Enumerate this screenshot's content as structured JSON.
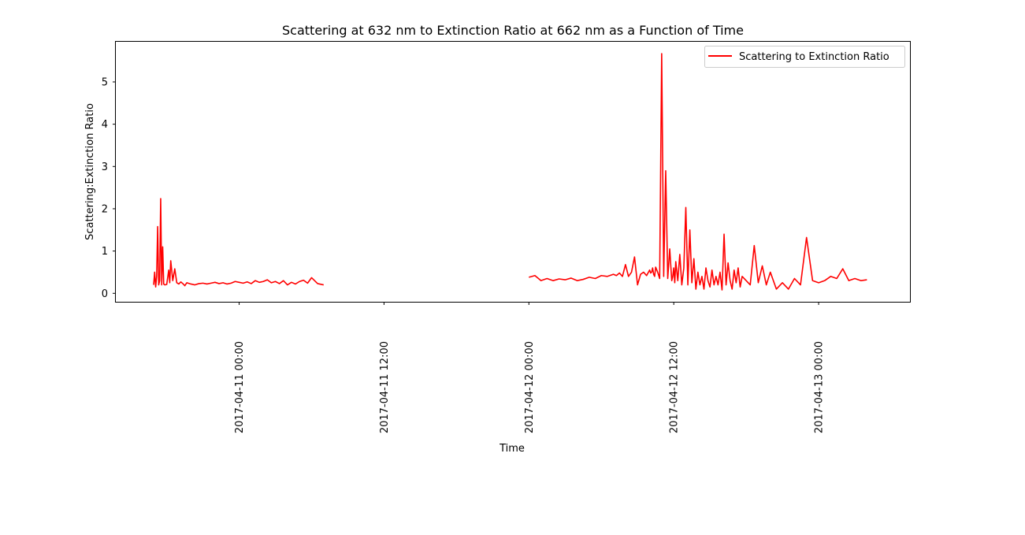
{
  "chart_data": {
    "type": "line",
    "title": "Scattering at 632 nm to Extinction Ratio at 662 nm as a Function of Time",
    "xlabel": "Time",
    "ylabel": "Scattering:Extinction Ratio",
    "xlim": [
      "2017-04-10 13:47",
      "2017-04-13 07:34"
    ],
    "ylim": [
      -0.2,
      5.95
    ],
    "x_ticks": [
      "2017-04-11 00:00",
      "2017-04-11 12:00",
      "2017-04-12 00:00",
      "2017-04-12 12:00",
      "2017-04-13 00:00"
    ],
    "y_ticks": [
      0,
      1,
      2,
      3,
      4,
      5
    ],
    "grid": false,
    "legend_position": "top-right",
    "colors": {
      "series": "#ff0000",
      "axes": "#000000",
      "background": "#ffffff"
    },
    "series": [
      {
        "name": "Scattering to Extinction Ratio",
        "segments": [
          {
            "x": [
              "2017-04-10 16:55",
              "2017-04-10 17:00",
              "2017-04-10 17:05",
              "2017-04-10 17:10",
              "2017-04-10 17:15",
              "2017-04-10 17:20",
              "2017-04-10 17:25",
              "2017-04-10 17:30",
              "2017-04-10 17:35",
              "2017-04-10 17:40",
              "2017-04-10 17:45",
              "2017-04-10 17:50",
              "2017-04-10 18:00",
              "2017-04-10 18:10",
              "2017-04-10 18:15",
              "2017-04-10 18:20",
              "2017-04-10 18:30",
              "2017-04-10 18:40",
              "2017-04-10 18:50",
              "2017-04-10 19:00",
              "2017-04-10 19:10",
              "2017-04-10 19:20",
              "2017-04-10 19:30",
              "2017-04-10 19:40",
              "2017-04-10 20:00",
              "2017-04-10 20:20",
              "2017-04-10 20:40",
              "2017-04-10 21:00",
              "2017-04-10 21:20",
              "2017-04-10 21:40",
              "2017-04-10 22:00",
              "2017-04-10 22:20",
              "2017-04-10 22:40",
              "2017-04-10 23:00",
              "2017-04-10 23:20",
              "2017-04-10 23:40",
              "2017-04-11 00:00",
              "2017-04-11 00:20",
              "2017-04-11 00:40",
              "2017-04-11 01:00",
              "2017-04-11 01:20",
              "2017-04-11 01:40",
              "2017-04-11 02:00",
              "2017-04-11 02:20",
              "2017-04-11 02:40",
              "2017-04-11 03:00",
              "2017-04-11 03:20",
              "2017-04-11 03:40",
              "2017-04-11 04:00",
              "2017-04-11 04:20",
              "2017-04-11 04:40",
              "2017-04-11 05:00",
              "2017-04-11 05:20",
              "2017-04-11 05:40",
              "2017-04-11 06:00",
              "2017-04-11 06:30",
              "2017-04-11 07:00"
            ],
            "y": [
              0.2,
              0.5,
              0.15,
              0.4,
              1.58,
              0.2,
              0.3,
              2.24,
              0.2,
              1.1,
              0.22,
              0.2,
              0.21,
              0.55,
              0.25,
              0.77,
              0.3,
              0.58,
              0.25,
              0.22,
              0.27,
              0.23,
              0.18,
              0.25,
              0.22,
              0.2,
              0.23,
              0.24,
              0.22,
              0.24,
              0.26,
              0.23,
              0.25,
              0.22,
              0.24,
              0.28,
              0.26,
              0.24,
              0.27,
              0.23,
              0.3,
              0.26,
              0.28,
              0.32,
              0.25,
              0.28,
              0.23,
              0.3,
              0.2,
              0.26,
              0.22,
              0.28,
              0.31,
              0.24,
              0.37,
              0.23,
              0.2
            ]
          },
          {
            "x": [
              "2017-04-12 00:00",
              "2017-04-12 00:30",
              "2017-04-12 01:00",
              "2017-04-12 01:30",
              "2017-04-12 02:00",
              "2017-04-12 02:30",
              "2017-04-12 03:00",
              "2017-04-12 03:30",
              "2017-04-12 04:00",
              "2017-04-12 04:30",
              "2017-04-12 05:00",
              "2017-04-12 05:30",
              "2017-04-12 06:00",
              "2017-04-12 06:30",
              "2017-04-12 07:00",
              "2017-04-12 07:15",
              "2017-04-12 07:30",
              "2017-04-12 07:45",
              "2017-04-12 08:00",
              "2017-04-12 08:15",
              "2017-04-12 08:30",
              "2017-04-12 08:45",
              "2017-04-12 09:00",
              "2017-04-12 09:15",
              "2017-04-12 09:30",
              "2017-04-12 09:45",
              "2017-04-12 10:00",
              "2017-04-12 10:05",
              "2017-04-12 10:10",
              "2017-04-12 10:15",
              "2017-04-12 10:20",
              "2017-04-12 10:25",
              "2017-04-12 10:30",
              "2017-04-12 10:40",
              "2017-04-12 10:50",
              "2017-04-12 11:00",
              "2017-04-12 11:10",
              "2017-04-12 11:20",
              "2017-04-12 11:30",
              "2017-04-12 11:40",
              "2017-04-12 11:50",
              "2017-04-12 11:55",
              "2017-04-12 12:00",
              "2017-04-12 12:05",
              "2017-04-12 12:10",
              "2017-04-12 12:20",
              "2017-04-12 12:30",
              "2017-04-12 12:40",
              "2017-04-12 12:50",
              "2017-04-12 13:00",
              "2017-04-12 13:10",
              "2017-04-12 13:20",
              "2017-04-12 13:30",
              "2017-04-12 13:40",
              "2017-04-12 13:50",
              "2017-04-12 14:00",
              "2017-04-12 14:10",
              "2017-04-12 14:20",
              "2017-04-12 14:30",
              "2017-04-12 14:40",
              "2017-04-12 14:50",
              "2017-04-12 15:00",
              "2017-04-12 15:10",
              "2017-04-12 15:20",
              "2017-04-12 15:30",
              "2017-04-12 15:40",
              "2017-04-12 15:50",
              "2017-04-12 16:00",
              "2017-04-12 16:10",
              "2017-04-12 16:20",
              "2017-04-12 16:30",
              "2017-04-12 16:40",
              "2017-04-12 16:50",
              "2017-04-12 17:00",
              "2017-04-12 17:10",
              "2017-04-12 17:20",
              "2017-04-12 17:30",
              "2017-04-12 17:40",
              "2017-04-12 18:00",
              "2017-04-12 18:20",
              "2017-04-12 18:40",
              "2017-04-12 19:00",
              "2017-04-12 19:20",
              "2017-04-12 19:40",
              "2017-04-12 20:00",
              "2017-04-12 20:30",
              "2017-04-12 21:00",
              "2017-04-12 21:30",
              "2017-04-12 22:00",
              "2017-04-12 22:30",
              "2017-04-12 23:00",
              "2017-04-12 23:30",
              "2017-04-13 00:00",
              "2017-04-13 00:30",
              "2017-04-13 01:00",
              "2017-04-13 01:30",
              "2017-04-13 02:00",
              "2017-04-13 02:30",
              "2017-04-13 03:00",
              "2017-04-13 03:30",
              "2017-04-13 04:00"
            ],
            "y": [
              0.38,
              0.42,
              0.3,
              0.35,
              0.3,
              0.34,
              0.32,
              0.36,
              0.3,
              0.33,
              0.38,
              0.35,
              0.42,
              0.4,
              0.45,
              0.42,
              0.48,
              0.4,
              0.68,
              0.4,
              0.5,
              0.86,
              0.2,
              0.45,
              0.5,
              0.42,
              0.55,
              0.48,
              0.5,
              0.6,
              0.45,
              0.4,
              0.62,
              0.5,
              0.35,
              5.67,
              0.4,
              2.9,
              0.35,
              1.05,
              0.3,
              0.4,
              0.6,
              0.25,
              0.75,
              0.3,
              0.92,
              0.2,
              0.6,
              2.03,
              0.2,
              1.5,
              0.25,
              0.82,
              0.1,
              0.5,
              0.2,
              0.4,
              0.1,
              0.6,
              0.3,
              0.15,
              0.55,
              0.2,
              0.4,
              0.2,
              0.5,
              0.08,
              1.4,
              0.2,
              0.72,
              0.3,
              0.1,
              0.55,
              0.25,
              0.6,
              0.15,
              0.4,
              0.3,
              0.2,
              1.13,
              0.25,
              0.65,
              0.2,
              0.5,
              0.1,
              0.25,
              0.1,
              0.35,
              0.2,
              1.32,
              0.3,
              0.25,
              0.3,
              0.4,
              0.35,
              0.58,
              0.3,
              0.35,
              0.3,
              0.32
            ]
          }
        ]
      }
    ]
  }
}
